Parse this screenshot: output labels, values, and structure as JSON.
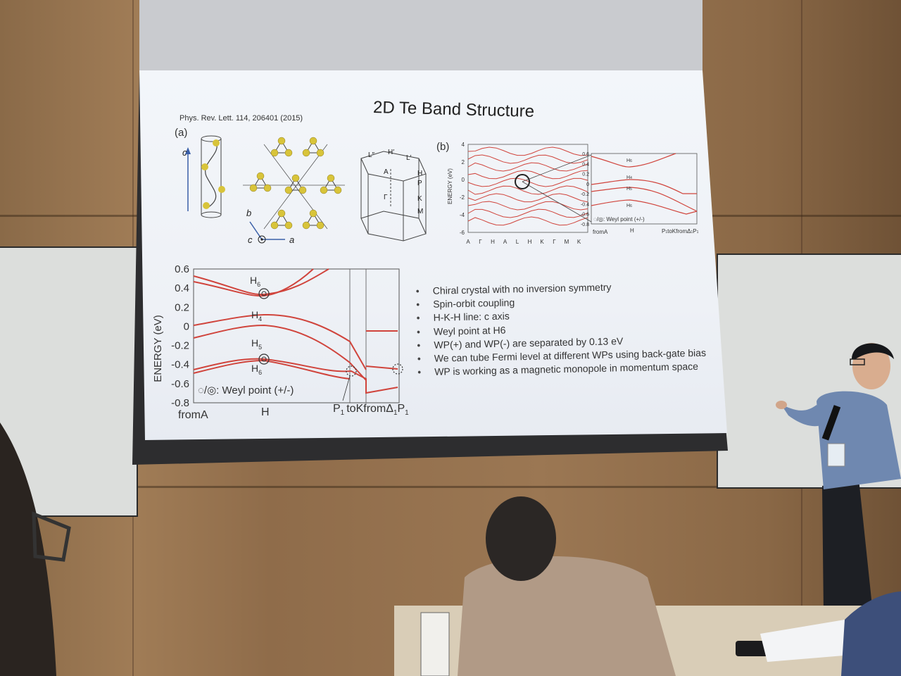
{
  "slide": {
    "title": "2D Te Band Structure",
    "reference": "Phys. Rev. Lett. 114, 206401 (2015)",
    "panel_a_label": "(a)",
    "panel_b_label": "(b)",
    "bullets": [
      "Chiral crystal with no inversion symmetry",
      "Spin-orbit coupling",
      "H-K-H line: c axis",
      "Weyl point at H6",
      "WP(+) and WP(-) are separated by 0.13 eV",
      "We can tube Fermi level at different WPs using back-gate bias",
      "WP is working as a magnetic monopole in momentum space"
    ]
  },
  "chart_data": [
    {
      "type": "line",
      "title": "",
      "ylabel": "ENERGY (eV)",
      "ylim": [
        -0.8,
        0.6
      ],
      "y_ticks": [
        "0.6",
        "0.4",
        "0.2",
        "0",
        "-0.2",
        "-0.4",
        "-0.6",
        "-0.8"
      ],
      "x_ticks": [
        "fromA",
        "H",
        "P",
        "toKfromΔ",
        "P"
      ],
      "x_tick_subscripts": [
        "",
        "",
        "1",
        "1",
        "1"
      ],
      "point_labels": [
        {
          "text": "H",
          "sub": "6"
        },
        {
          "text": "H",
          "sub": "4"
        },
        {
          "text": "H",
          "sub": "5"
        },
        {
          "text": "H",
          "sub": "6"
        }
      ],
      "legend": "◌/◎: Weyl point (+/-)"
    },
    {
      "type": "line",
      "title": "",
      "ylabel": "ENERGY (eV)",
      "ylim": [
        -6,
        4
      ],
      "y_ticks": [
        "4",
        "2",
        "0",
        "-2",
        "-4",
        "-6"
      ],
      "x_ticks": [
        "A",
        "Γ",
        "H",
        "A",
        "L",
        "H",
        "K",
        "Γ",
        "M",
        "K"
      ]
    }
  ],
  "crystal": {
    "axis_c": "c",
    "axis_b": "b",
    "axis_a": "a",
    "bz_labels": [
      "L″",
      "H′",
      "L′",
      "A",
      "H",
      "P",
      "Γ",
      "K",
      "M"
    ]
  },
  "colors": {
    "band": "#d0443c",
    "atom": "#d8c43a",
    "text": "#333333"
  }
}
